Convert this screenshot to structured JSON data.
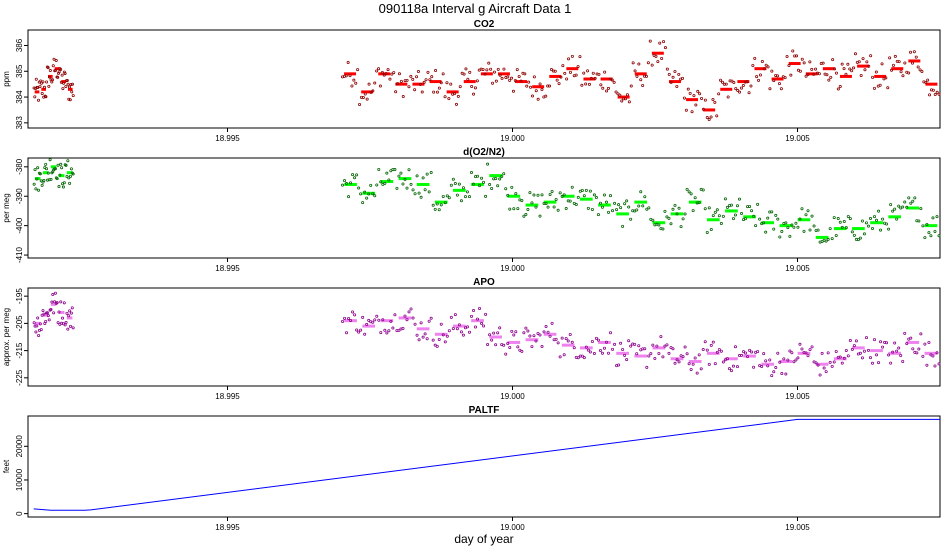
{
  "title": "090118a   Interval g Aircraft Data 1",
  "chart_data": [
    {
      "type": "scatter",
      "title": "CO2",
      "ylabel": "ppm",
      "xlabel": "",
      "xlim": [
        18.9915,
        19.0075
      ],
      "ylim": [
        382.8,
        386.6
      ],
      "yticks": [
        383,
        384,
        385,
        386
      ],
      "xticks": [
        18.995,
        19.0,
        19.005
      ],
      "xtick_labels": [
        "18.995",
        "19.000",
        "19.005"
      ],
      "point_color": "#8b0000",
      "avg_color": "#ff0000",
      "series": [
        {
          "name": "segment 1",
          "x_range": [
            18.9916,
            18.9923
          ],
          "base": [
            384.2,
            384.3,
            384.8,
            385.1,
            384.6,
            384.3
          ]
        },
        {
          "name": "segment 2",
          "x_range": [
            18.997,
            19.0075
          ],
          "base": [
            384.9,
            384.2,
            384.9,
            384.5,
            384.5,
            384.6,
            384.2,
            384.6,
            384.9,
            384.9,
            384.6,
            384.4,
            384.8,
            385.1,
            384.7,
            384.7,
            384.0,
            384.9,
            385.7,
            384.6,
            383.9,
            383.5,
            384.3,
            384.6,
            385.1,
            384.7,
            385.3,
            384.9,
            385.1,
            384.8,
            385.2,
            384.8,
            385.1,
            385.4,
            384.5
          ]
        }
      ]
    },
    {
      "type": "scatter",
      "title": "d(O2/N2)",
      "ylabel": "per meg",
      "xlabel": "",
      "xlim": [
        18.9915,
        19.0075
      ],
      "ylim": [
        -411,
        -377
      ],
      "yticks": [
        -380,
        -390,
        -400,
        -410
      ],
      "xticks": [
        18.995,
        19.0,
        19.005
      ],
      "xtick_labels": [
        "18.995",
        "19.000",
        "19.005"
      ],
      "point_color": "#006400",
      "avg_color": "#00ff00",
      "series": [
        {
          "name": "segment 1",
          "x_range": [
            18.9916,
            18.9923
          ],
          "base": [
            -384,
            -382,
            -380,
            -383,
            -382
          ]
        },
        {
          "name": "segment 2",
          "x_range": [
            18.997,
            19.0075
          ],
          "base": [
            -386,
            -389,
            -385,
            -384,
            -386,
            -392,
            -388,
            -386,
            -383,
            -390,
            -393,
            -392,
            -390,
            -391,
            -393,
            -396,
            -392,
            -399,
            -396,
            -392,
            -398,
            -395,
            -397,
            -399,
            -400,
            -398,
            -404,
            -401,
            -401,
            -399,
            -397,
            -394,
            -400
          ]
        }
      ]
    },
    {
      "type": "scatter",
      "title": "APO",
      "ylabel": "approx. per meg",
      "xlabel": "",
      "xlim": [
        18.9915,
        19.0075
      ],
      "ylim": [
        -228,
        -192
      ],
      "yticks": [
        -195,
        -205,
        -215,
        -225
      ],
      "xticks": [
        18.995,
        19.0,
        19.005
      ],
      "xtick_labels": [
        "18.995",
        "19.000",
        "19.005"
      ],
      "point_color": "#8b008b",
      "avg_color": "#ee82ee",
      "series": [
        {
          "name": "segment 1",
          "x_range": [
            18.9916,
            18.9923
          ],
          "base": [
            -205,
            -202,
            -198,
            -201,
            -203
          ]
        },
        {
          "name": "segment 2",
          "x_range": [
            18.997,
            19.0075
          ],
          "base": [
            -204,
            -206,
            -204,
            -203,
            -207,
            -209,
            -206,
            -204,
            -210,
            -212,
            -211,
            -209,
            -213,
            -214,
            -212,
            -216,
            -217,
            -214,
            -218,
            -219,
            -216,
            -218,
            -217,
            -220,
            -219,
            -216,
            -220,
            -218,
            -214,
            -215,
            -216,
            -212,
            -216
          ]
        }
      ]
    },
    {
      "type": "line",
      "title": "PALTF",
      "ylabel": "feet",
      "xlabel": "day of year",
      "xlim": [
        18.9915,
        19.0075
      ],
      "ylim": [
        -1000,
        29000
      ],
      "yticks": [
        0,
        10000,
        20000
      ],
      "xticks": [
        18.995,
        19.0,
        19.005
      ],
      "xtick_labels": [
        "18.995",
        "19.000",
        "19.005"
      ],
      "line_color": "#0000ff",
      "x": [
        18.9916,
        18.9919,
        18.9925,
        18.9926,
        19.005,
        19.0075
      ],
      "y": [
        1400,
        1000,
        1000,
        1100,
        28000,
        28000
      ]
    }
  ]
}
